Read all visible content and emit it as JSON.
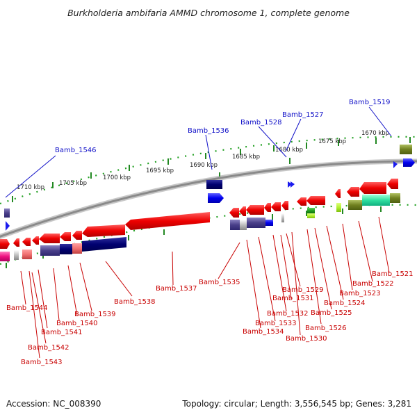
{
  "title": "Burkholderia ambifaria AMMD chromosome 1, complete genome",
  "footer": {
    "accession": "Accession: NC_008390",
    "topology": "Topology: circular; Length: 3,556,545 bp; Genes: 3,281"
  },
  "colors": {
    "forward": "#ee0000",
    "reverse": "#ee0000",
    "backbone": "#999999",
    "tick": "#22a022",
    "blue_label": "#1010c8",
    "red_label": "#c80000"
  },
  "kbp_ticks": [
    "1710 kbp",
    "1705 kbp",
    "1700 kbp",
    "1695 kbp",
    "1690 kbp",
    "1685 kbp",
    "1680 kbp",
    "1675 kbp",
    "1670 kbp"
  ],
  "top_labels": [
    "Bamb_1546",
    "Bamb_1536",
    "Bamb_1528",
    "Bamb_1527",
    "Bamb_1519"
  ],
  "bottom_labels": [
    "Bamb_1544",
    "Bamb_1543",
    "Bamb_1542",
    "Bamb_1541",
    "Bamb_1540",
    "Bamb_1539",
    "Bamb_1538",
    "Bamb_1537",
    "Bamb_1535",
    "Bamb_1534",
    "Bamb_1533",
    "Bamb_1532",
    "Bamb_1531",
    "Bamb_1530",
    "Bamb_1529",
    "Bamb_1526",
    "Bamb_1525",
    "Bamb_1524",
    "Bamb_1523",
    "Bamb_1522",
    "Bamb_1521"
  ]
}
